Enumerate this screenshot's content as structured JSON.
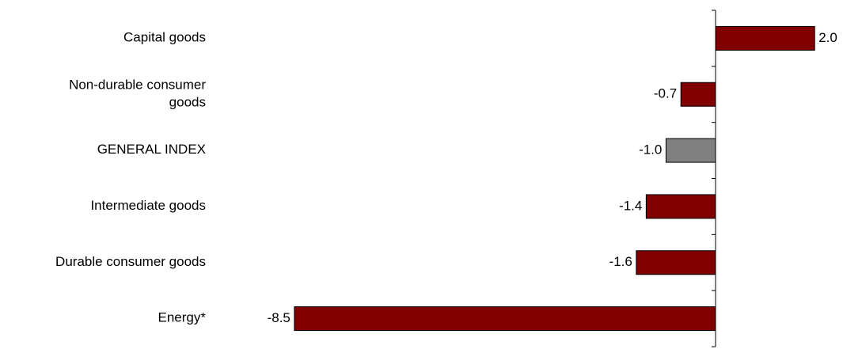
{
  "chart_data": {
    "type": "bar",
    "orientation": "horizontal",
    "categories": [
      [
        "Capital goods"
      ],
      [
        "Non-durable consumer",
        "goods"
      ],
      [
        "GENERAL INDEX"
      ],
      [
        "Intermediate goods"
      ],
      [
        "Durable consumer goods"
      ],
      [
        "Energy*"
      ]
    ],
    "values": [
      2.0,
      -0.7,
      -1.0,
      -1.4,
      -1.6,
      -8.5
    ],
    "value_labels": [
      "2.0",
      "-0.7",
      "-1.0",
      "-1.4",
      "-1.6",
      "-8.5"
    ],
    "bar_colors": [
      "#800000",
      "#800000",
      "#808080",
      "#800000",
      "#800000",
      "#800000"
    ],
    "xlim": [
      -8.5,
      2.0
    ],
    "grid": false,
    "legend": "none",
    "title": "",
    "xlabel": "",
    "ylabel": ""
  }
}
